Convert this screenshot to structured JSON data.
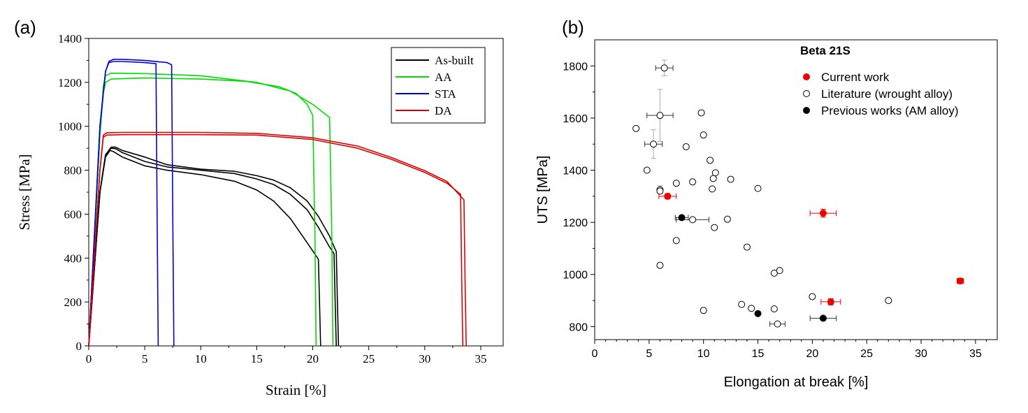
{
  "chart_data": [
    {
      "type": "line",
      "panel_label": "(a)",
      "xlabel": "Strain [%]",
      "ylabel": "Stress [MPa]",
      "xlim": [
        0,
        37
      ],
      "ylim": [
        0,
        1400
      ],
      "xticks": [
        0,
        5,
        10,
        15,
        20,
        25,
        30,
        35
      ],
      "yticks": [
        0,
        200,
        400,
        600,
        800,
        1000,
        1200,
        1400
      ],
      "legend_placement": "top-right",
      "grid": false,
      "series": [
        {
          "name": "As-built",
          "color": "#000000",
          "curves": [
            {
              "x": [
                0,
                0.5,
                1.0,
                1.5,
                1.9,
                2.2,
                3,
                5,
                7,
                10,
                13,
                15,
                16.5,
                18,
                19.5,
                20.5,
                20.6,
                20.7
              ],
              "y": [
                0,
                350,
                700,
                860,
                890,
                885,
                860,
                820,
                800,
                780,
                750,
                710,
                660,
                580,
                470,
                395,
                200,
                0
              ]
            },
            {
              "x": [
                0,
                0.5,
                1.0,
                1.5,
                2.0,
                2.4,
                3,
                5,
                7,
                10,
                13,
                15,
                16.5,
                18,
                19.5,
                20.5,
                21.5,
                21.9,
                22.0,
                22.1
              ],
              "y": [
                0,
                350,
                700,
                870,
                900,
                898,
                880,
                840,
                815,
                800,
                785,
                760,
                735,
                690,
                620,
                540,
                450,
                420,
                200,
                0
              ]
            },
            {
              "x": [
                0,
                0.5,
                1.0,
                1.5,
                2.0,
                2.4,
                3,
                5,
                7,
                10,
                13,
                15,
                16.5,
                18,
                19.5,
                20.5,
                21.5,
                22.0,
                22.1,
                22.2,
                22.3
              ],
              "y": [
                0,
                350,
                700,
                870,
                905,
                905,
                890,
                860,
                825,
                805,
                795,
                775,
                755,
                720,
                660,
                590,
                500,
                440,
                430,
                200,
                0
              ]
            }
          ]
        },
        {
          "name": "AA",
          "color": "#00dd00",
          "curves": [
            {
              "x": [
                0,
                0.5,
                1.0,
                1.3,
                1.5,
                2,
                5,
                10,
                14,
                17,
                18.5,
                19.5,
                20.0,
                20.2,
                20.3
              ],
              "y": [
                0,
                480,
                960,
                1150,
                1200,
                1215,
                1220,
                1215,
                1205,
                1180,
                1150,
                1100,
                1050,
                500,
                0
              ]
            },
            {
              "x": [
                0,
                0.5,
                1.0,
                1.3,
                1.5,
                2,
                5,
                10,
                15,
                18,
                20,
                21.5,
                21.7,
                21.8
              ],
              "y": [
                0,
                480,
                960,
                1180,
                1230,
                1242,
                1240,
                1230,
                1200,
                1160,
                1100,
                1040,
                500,
                0
              ]
            }
          ]
        },
        {
          "name": "STA",
          "color": "#0000dd",
          "curves": [
            {
              "x": [
                0,
                0.5,
                1.0,
                1.5,
                1.8,
                2.2,
                3,
                5,
                6.0,
                6.1,
                6.2
              ],
              "y": [
                0,
                500,
                1000,
                1250,
                1290,
                1295,
                1295,
                1290,
                1285,
                600,
                0
              ]
            },
            {
              "x": [
                0,
                0.5,
                1.0,
                1.5,
                1.8,
                2.2,
                3,
                5,
                7,
                7.4,
                7.5,
                7.6
              ],
              "y": [
                0,
                500,
                1000,
                1250,
                1295,
                1305,
                1305,
                1300,
                1290,
                1280,
                600,
                0
              ]
            }
          ]
        },
        {
          "name": "DA",
          "color": "#dd0000",
          "curves": [
            {
              "x": [
                0,
                0.5,
                1.0,
                1.3,
                1.6,
                3,
                10,
                15,
                20,
                24,
                27,
                30,
                32,
                33.2,
                33.3,
                33.4
              ],
              "y": [
                0,
                400,
                800,
                950,
                960,
                962,
                962,
                960,
                940,
                900,
                850,
                790,
                740,
                690,
                300,
                0
              ]
            },
            {
              "x": [
                0,
                0.5,
                1.0,
                1.3,
                1.6,
                3,
                10,
                15,
                20,
                24,
                27,
                30,
                32,
                33.5,
                33.6,
                33.7
              ],
              "y": [
                0,
                400,
                800,
                960,
                970,
                972,
                972,
                968,
                948,
                910,
                858,
                798,
                748,
                665,
                300,
                0
              ]
            }
          ]
        }
      ]
    },
    {
      "type": "scatter",
      "panel_label": "(b)",
      "xlabel": "Elongation at break [%]",
      "ylabel": "UTS [MPa]",
      "xlim": [
        0,
        37
      ],
      "ylim": [
        750,
        1900
      ],
      "xticks": [
        0,
        5,
        10,
        15,
        20,
        25,
        30,
        35
      ],
      "yticks": [
        800,
        1000,
        1200,
        1400,
        1600,
        1800
      ],
      "legend_title": "Beta 21S",
      "legend_placement": "top-right",
      "grid": false,
      "series": [
        {
          "name": "Current work",
          "marker": "filled-circle",
          "color": "#ee0000",
          "points": [
            {
              "x": 6.7,
              "y": 1300,
              "xerr": 0.8,
              "yerr": 10
            },
            {
              "x": 21.0,
              "y": 1235,
              "xerr": 1.2,
              "yerr": 15
            },
            {
              "x": 21.7,
              "y": 895,
              "xerr": 0.9,
              "yerr": 12
            },
            {
              "x": 33.6,
              "y": 975,
              "xerr": 0.3,
              "yerr": 10
            }
          ]
        },
        {
          "name": "Literature (wrought alloy)",
          "marker": "open-circle",
          "color": "#000000",
          "points": [
            {
              "x": 6.4,
              "y": 1792,
              "xerr": 0.8,
              "yerr": 30
            },
            {
              "x": 6.0,
              "y": 1610,
              "xerr": 1.2,
              "yerr": 100
            },
            {
              "x": 3.8,
              "y": 1560
            },
            {
              "x": 5.4,
              "y": 1500,
              "xerr": 0.8,
              "yerr": 55
            },
            {
              "x": 4.8,
              "y": 1400
            },
            {
              "x": 6.0,
              "y": 1325,
              "yerr": 15
            },
            {
              "x": 6.0,
              "y": 1320
            },
            {
              "x": 7.5,
              "y": 1350
            },
            {
              "x": 8.4,
              "y": 1490
            },
            {
              "x": 9.0,
              "y": 1355
            },
            {
              "x": 9.8,
              "y": 1620
            },
            {
              "x": 10.0,
              "y": 1535
            },
            {
              "x": 10.6,
              "y": 1438
            },
            {
              "x": 11.1,
              "y": 1390
            },
            {
              "x": 10.9,
              "y": 1368
            },
            {
              "x": 10.8,
              "y": 1328
            },
            {
              "x": 12.5,
              "y": 1365
            },
            {
              "x": 15.0,
              "y": 1330
            },
            {
              "x": 9.0,
              "y": 1210,
              "xerr": 1.5
            },
            {
              "x": 11.0,
              "y": 1180
            },
            {
              "x": 12.2,
              "y": 1212
            },
            {
              "x": 7.5,
              "y": 1130
            },
            {
              "x": 6.0,
              "y": 1035
            },
            {
              "x": 14.0,
              "y": 1105
            },
            {
              "x": 16.5,
              "y": 1005
            },
            {
              "x": 17.0,
              "y": 1015
            },
            {
              "x": 10.0,
              "y": 862
            },
            {
              "x": 13.5,
              "y": 885
            },
            {
              "x": 14.4,
              "y": 870
            },
            {
              "x": 16.5,
              "y": 868
            },
            {
              "x": 16.8,
              "y": 810,
              "xerr": 0.7
            },
            {
              "x": 20.0,
              "y": 915
            },
            {
              "x": 27.0,
              "y": 900
            }
          ]
        },
        {
          "name": "Previous works (AM alloy)",
          "marker": "filled-circle",
          "color": "#000000",
          "points": [
            {
              "x": 8.0,
              "y": 1218,
              "xerr": 0.6
            },
            {
              "x": 15.0,
              "y": 850
            },
            {
              "x": 21.0,
              "y": 832,
              "xerr": 1.2
            }
          ]
        }
      ]
    }
  ]
}
